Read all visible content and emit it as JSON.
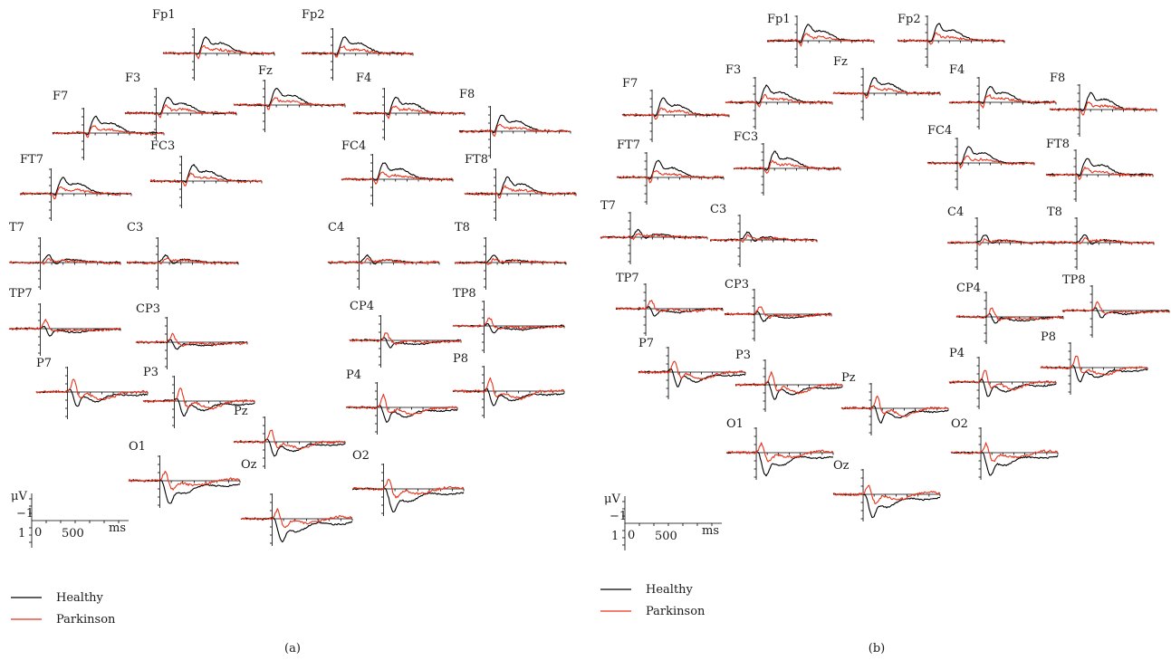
{
  "chart_data": [
    {
      "type": "line",
      "panel_label": "(a)",
      "channels": [
        "Fp1",
        "Fp2",
        "Fz",
        "F3",
        "F4",
        "F7",
        "F8",
        "FC3",
        "FC4",
        "FT7",
        "FT8",
        "T7",
        "C3",
        "C4",
        "T8",
        "TP7",
        "CP3",
        "CP4",
        "TP8",
        "P7",
        "P3",
        "Pz",
        "P4",
        "P8",
        "O1",
        "Oz",
        "O2"
      ],
      "series": [
        {
          "name": "Healthy",
          "color": "#000000"
        },
        {
          "name": "Parkinson",
          "color": "#e8321c"
        }
      ],
      "scale_bar": {
        "unit_y": "μV",
        "tick_y_upper": "−1",
        "tick_y_lower": "1",
        "tick_x_start": "0",
        "tick_x_mid": "500",
        "unit_x": "ms"
      }
    },
    {
      "type": "line",
      "panel_label": "(b)",
      "channels": [
        "Fp1",
        "Fp2",
        "Fz",
        "F3",
        "F4",
        "F7",
        "F8",
        "FC3",
        "FC4",
        "FT7",
        "FT8",
        "T7",
        "C3",
        "C4",
        "T8",
        "TP7",
        "CP3",
        "CP4",
        "TP8",
        "P7",
        "P3",
        "Pz",
        "P4",
        "P8",
        "O1",
        "Oz",
        "O2"
      ],
      "series": [
        {
          "name": "Healthy",
          "color": "#000000"
        },
        {
          "name": "Parkinson",
          "color": "#e8321c"
        }
      ],
      "scale_bar": {
        "unit_y": "μV",
        "tick_y_upper": "−1",
        "tick_y_lower": "1",
        "tick_x_start": "0",
        "tick_x_mid": "500",
        "unit_x": "ms"
      }
    }
  ]
}
